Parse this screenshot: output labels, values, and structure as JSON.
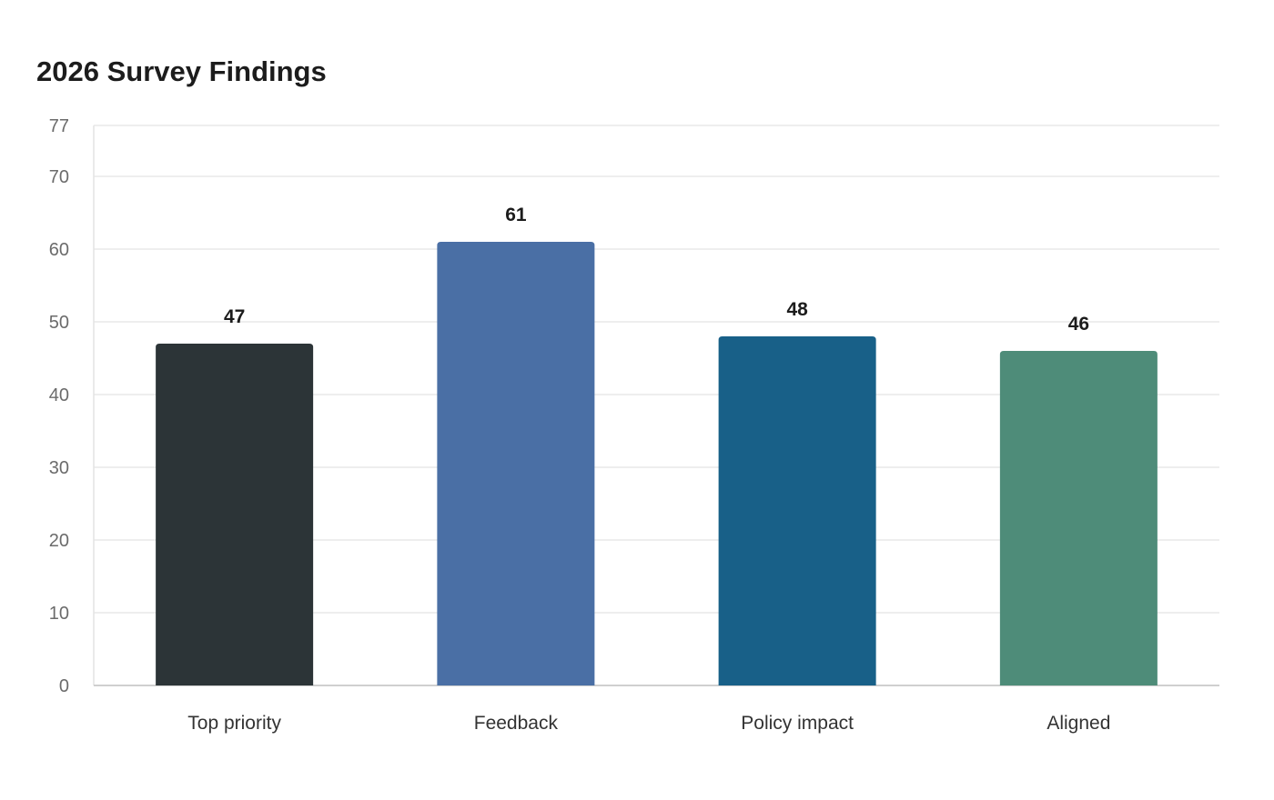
{
  "chart_data": {
    "type": "bar",
    "title": "2026 Survey Findings",
    "xlabel": "",
    "ylabel": "",
    "categories": [
      "Top priority",
      "Feedback",
      "Policy impact",
      "Aligned"
    ],
    "values": [
      47,
      61,
      48,
      46
    ],
    "ylim": [
      0,
      77
    ],
    "yticks": [
      0,
      10,
      20,
      30,
      40,
      50,
      60,
      70,
      77
    ],
    "grid": true,
    "legend": "none",
    "data_labels": true,
    "colors": [
      "#2c3437",
      "#4a6fa5",
      "#186088",
      "#4e8c79"
    ]
  }
}
